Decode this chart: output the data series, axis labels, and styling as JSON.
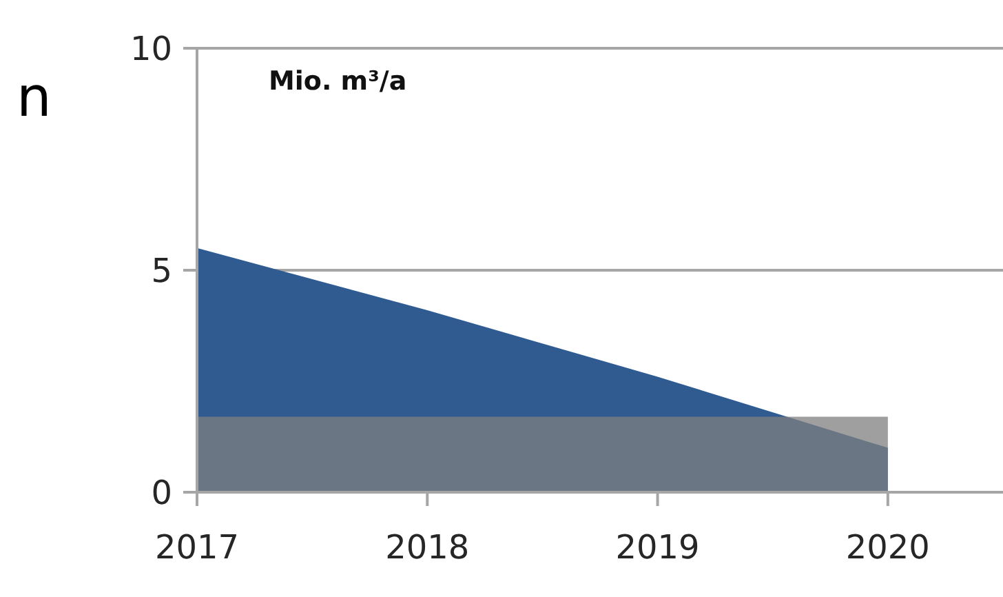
{
  "chart_data": {
    "type": "area",
    "ylabel": "Mio. m³/a",
    "annotations": [
      "n"
    ],
    "x": [
      2017,
      2018,
      2019,
      2020
    ],
    "xlim": [
      2017,
      2020.5
    ],
    "xticks": [
      2017,
      2018,
      2019,
      2020
    ],
    "ylim": [
      0,
      10
    ],
    "yticks": [
      0,
      5,
      10
    ],
    "grid": "y",
    "series": [
      {
        "color": "#2f5b91",
        "values": [
          5.5,
          4.1,
          2.6,
          1.0
        ]
      },
      {
        "color": "#7f7f7f",
        "values": [
          1.7,
          1.7,
          1.7,
          1.7
        ]
      }
    ]
  }
}
